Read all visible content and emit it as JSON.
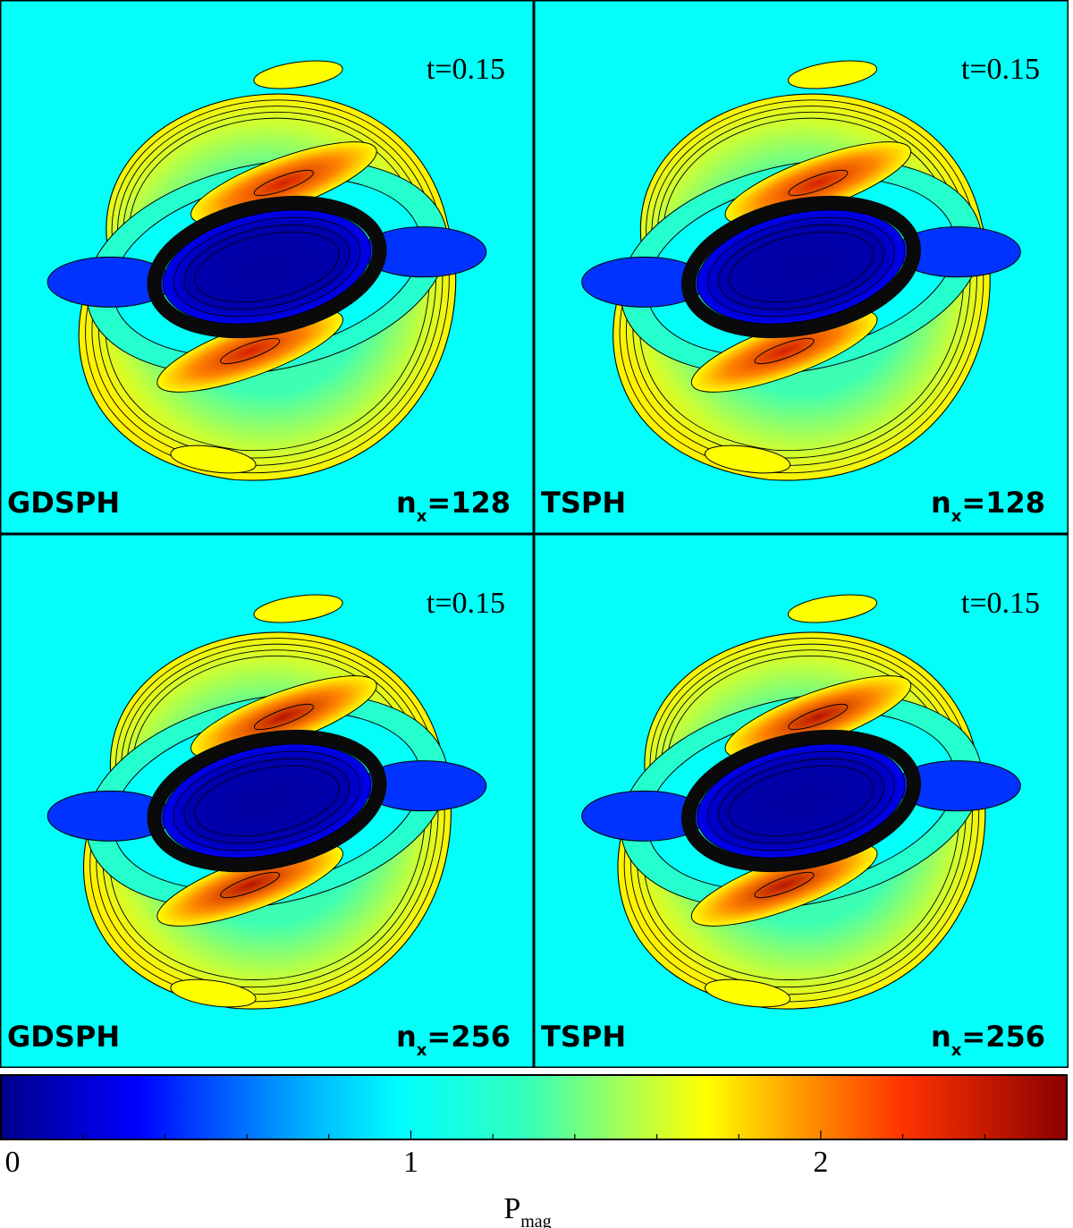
{
  "figure": {
    "panels": [
      {
        "method": "GDSPH",
        "time": "t=0.15",
        "nx_label": "n",
        "nx_sub": "x",
        "nx_value": "=128"
      },
      {
        "method": "TSPH",
        "time": "t=0.15",
        "nx_label": "n",
        "nx_sub": "x",
        "nx_value": "=128"
      },
      {
        "method": "GDSPH",
        "time": "t=0.15",
        "nx_label": "n",
        "nx_sub": "x",
        "nx_value": "=256"
      },
      {
        "method": "TSPH",
        "time": "t=0.15",
        "nx_label": "n",
        "nx_sub": "x",
        "nx_value": "=256"
      }
    ],
    "colorbar": {
      "label_main": "P",
      "label_sub": "mag",
      "ticks": [
        "0",
        "1",
        "2"
      ],
      "tick_values": [
        0,
        1,
        2
      ],
      "range": [
        0,
        2.6
      ],
      "stops": [
        {
          "v": 0.0,
          "c": "#00008b"
        },
        {
          "v": 0.33,
          "c": "#0000ff"
        },
        {
          "v": 0.78,
          "c": "#00bfff"
        },
        {
          "v": 0.98,
          "c": "#00ffff"
        },
        {
          "v": 1.28,
          "c": "#33ffbb"
        },
        {
          "v": 1.6,
          "c": "#ccff33"
        },
        {
          "v": 1.72,
          "c": "#ffff00"
        },
        {
          "v": 1.95,
          "c": "#ff9900"
        },
        {
          "v": 2.2,
          "c": "#ff3300"
        },
        {
          "v": 2.6,
          "c": "#8b0000"
        }
      ]
    }
  },
  "chart_data": {
    "type": "heatmap",
    "field": "magnetic pressure",
    "time": "t=0.15",
    "panels": [
      {
        "method": "GDSPH",
        "nx": 128,
        "background": 1.0,
        "outer_shell_max": 1.75,
        "lobe_max": 2.35,
        "core_min": 0.05
      },
      {
        "method": "TSPH",
        "nx": 128,
        "background": 1.0,
        "outer_shell_max": 1.75,
        "lobe_max": 2.35,
        "core_min": 0.05
      },
      {
        "method": "GDSPH",
        "nx": 256,
        "background": 1.0,
        "outer_shell_max": 1.75,
        "lobe_max": 2.45,
        "core_min": 0.05
      },
      {
        "method": "TSPH",
        "nx": 256,
        "background": 1.0,
        "outer_shell_max": 1.75,
        "lobe_max": 2.45,
        "core_min": 0.05
      }
    ],
    "colorbar": {
      "label": "P_mag",
      "ticks": [
        0,
        1,
        2
      ],
      "range": [
        0,
        2.6
      ]
    }
  }
}
